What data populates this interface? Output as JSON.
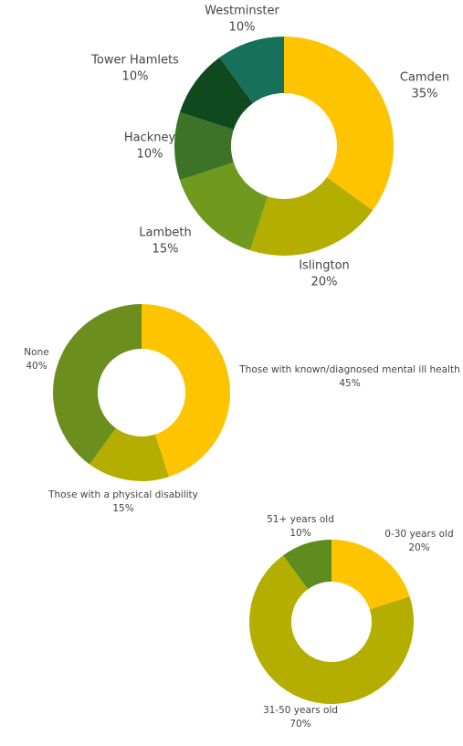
{
  "chart_data": [
    {
      "type": "pie",
      "categories": [
        "Camden",
        "Islington",
        "Lambeth",
        "Hackney",
        "Tower Hamlets",
        "Westminster"
      ],
      "values": [
        35,
        20,
        15,
        10,
        10,
        10
      ],
      "value_labels": [
        "35%",
        "20%",
        "15%",
        "10%",
        "10%",
        "10%"
      ],
      "colors": [
        "#ffc400",
        "#b3ae00",
        "#6f9a1d",
        "#3c7326",
        "#0f4a1e",
        "#16705a"
      ]
    },
    {
      "type": "pie",
      "categories": [
        "Those with known/diagnosed mental ill health",
        "Those with a physical disability",
        "None"
      ],
      "values": [
        45,
        15,
        40
      ],
      "value_labels": [
        "45%",
        "15%",
        "40%"
      ],
      "colors": [
        "#ffc400",
        "#b3ae00",
        "#6b8e1e"
      ]
    },
    {
      "type": "pie",
      "categories": [
        "0-30 years old",
        "31-50 years old",
        "51+ years old"
      ],
      "values": [
        20,
        70,
        10
      ],
      "value_labels": [
        "20%",
        "70%",
        "10%"
      ],
      "colors": [
        "#ffc400",
        "#b3ae00",
        "#5e8c1f"
      ]
    }
  ]
}
